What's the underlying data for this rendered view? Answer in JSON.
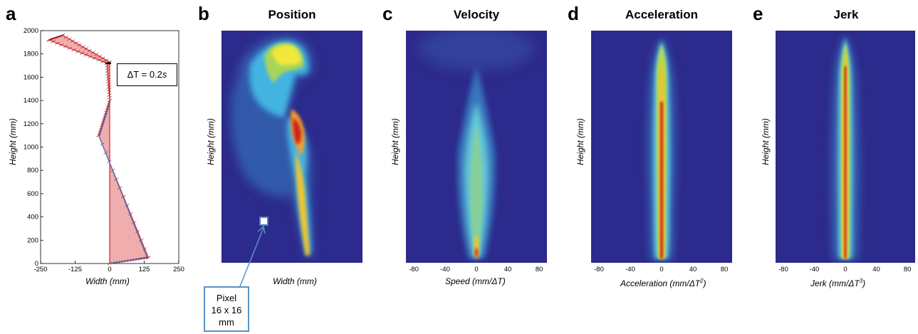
{
  "panels": {
    "a": {
      "letter": "a",
      "title": "",
      "xlabel": "Width (mm)",
      "ylabel": "Height (mm)"
    },
    "b": {
      "letter": "b",
      "title": "Position",
      "xlabel": "Width (mm)",
      "ylabel": "Height (mm)"
    },
    "c": {
      "letter": "c",
      "title": "Velocity",
      "xlabel": "Speed (mm/ΔT)",
      "ylabel": "Height (mm)"
    },
    "d": {
      "letter": "d",
      "title": "Acceleration",
      "xlabel_main": "Acceleration (mm/ΔT",
      "xlabel_sup": "2",
      "xlabel_end": ")",
      "ylabel": "Height (mm)"
    },
    "e": {
      "letter": "e",
      "title": "Jerk",
      "xlabel_main": "Jerk (mm/ΔT",
      "xlabel_sup": "3",
      "xlabel_end": ")",
      "ylabel": "Height (mm)"
    }
  },
  "annotations": {
    "delta_t_prefix": "ΔT = 0.2",
    "delta_t_unit": "s",
    "pixel_line1": "Pixel",
    "pixel_line2": "16 x 16",
    "pixel_line3": "mm"
  },
  "chart_data": [
    {
      "type": "line",
      "panel": "a",
      "xlabel": "Width (mm)",
      "ylabel": "Height (mm)",
      "xlim": [
        -250,
        250
      ],
      "ylim": [
        0,
        2000
      ],
      "xticks": [
        "-250",
        "-125",
        "0",
        "125",
        "250"
      ],
      "yticks": [
        "0",
        "200",
        "400",
        "600",
        "800",
        "1000",
        "1200",
        "1400",
        "1600",
        "1800",
        "2000"
      ],
      "series": [
        {
          "color": "#d6242a",
          "points": [
            [
              0,
              0
            ],
            [
              140,
              50
            ],
            [
              -40,
              1100
            ],
            [
              0,
              1400
            ],
            [
              -10,
              1720
            ],
            [
              -220,
              1920
            ],
            [
              -170,
              1960
            ],
            [
              0,
              1730
            ]
          ]
        },
        {
          "color": "#3a78c0",
          "points": [
            [
              0,
              0
            ],
            [
              135,
              55
            ],
            [
              -38,
              1090
            ],
            [
              2,
              1390
            ]
          ]
        }
      ],
      "annotation": "ΔT = 0.2s"
    },
    {
      "type": "heatmap",
      "panel": "b",
      "title": "Position",
      "xlabel": "Width (mm)",
      "ylabel": "Height (mm)",
      "xticks": [],
      "yticks": []
    },
    {
      "type": "heatmap",
      "panel": "c",
      "title": "Velocity",
      "xlabel": "Speed (mm/ΔT)",
      "ylabel": "Height (mm)",
      "xlim": [
        -90,
        90
      ],
      "xticks": [
        "-80",
        "-40",
        "0",
        "40",
        "80"
      ]
    },
    {
      "type": "heatmap",
      "panel": "d",
      "title": "Acceleration",
      "xlabel": "Acceleration (mm/ΔT2)",
      "ylabel": "Height (mm)",
      "xlim": [
        -90,
        90
      ],
      "xticks": [
        "-80",
        "-40",
        "0",
        "40",
        "80"
      ]
    },
    {
      "type": "heatmap",
      "panel": "e",
      "title": "Jerk",
      "xlabel": "Jerk (mm/ΔT3)",
      "ylabel": "Height (mm)",
      "xlim": [
        -90,
        90
      ],
      "xticks": [
        "-80",
        "-40",
        "0",
        "40",
        "80"
      ]
    }
  ]
}
